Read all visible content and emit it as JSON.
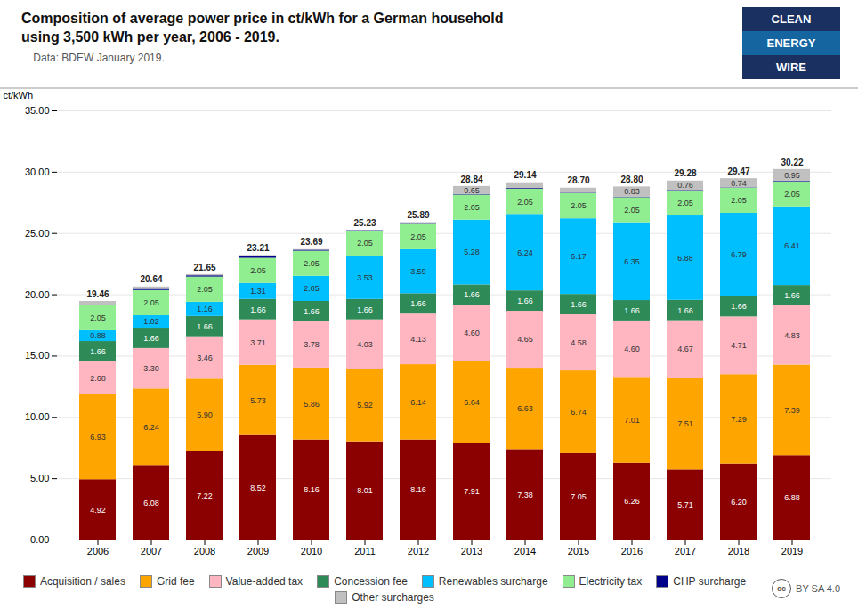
{
  "chart_data": {
    "type": "bar",
    "stacked": true,
    "title": "Composition of average power price in ct/kWh for a German household\nusing 3,500 kWh per year, 2006 - 2019.",
    "subtitle": "    Data: BDEW January 2019.",
    "categories": [
      2006,
      2007,
      2008,
      2009,
      2010,
      2011,
      2012,
      2013,
      2014,
      2015,
      2016,
      2017,
      2018,
      2019
    ],
    "series": [
      {
        "name": "Acquisition / sales",
        "color": "#8B0000",
        "values": [
          4.92,
          6.08,
          7.22,
          8.52,
          8.16,
          8.01,
          8.16,
          7.91,
          7.38,
          7.05,
          6.26,
          5.71,
          6.2,
          6.88
        ],
        "value_labels": [
          "4.92",
          "6.08",
          "7.22",
          "8.52",
          "8.16",
          "8.01",
          "8.16",
          "7.91",
          "7.38",
          "7.05",
          "6.26",
          "5.71",
          "6.20",
          "6.88"
        ]
      },
      {
        "name": "Grid fee",
        "color": "#FFA500",
        "values": [
          6.93,
          6.24,
          5.9,
          5.73,
          5.86,
          5.92,
          6.14,
          6.64,
          6.63,
          6.74,
          7.01,
          7.51,
          7.29,
          7.39
        ],
        "value_labels": [
          "6.93",
          "6.24",
          "5.90",
          "5.73",
          "5.86",
          "5.92",
          "6.14",
          "6.64",
          "6.63",
          "6.74",
          "7.01",
          "7.51",
          "7.29",
          "7.39"
        ]
      },
      {
        "name": "Value-added tax",
        "color": "#FFB6C1",
        "values": [
          2.68,
          3.3,
          3.46,
          3.71,
          3.78,
          4.03,
          4.13,
          4.6,
          4.65,
          4.58,
          4.6,
          4.67,
          4.71,
          4.83
        ],
        "value_labels": [
          "2.68",
          "3.30",
          "3.46",
          "3.71",
          "3.78",
          "4.03",
          "4.13",
          "4.60",
          "4.65",
          "4.58",
          "4.60",
          "4.67",
          "4.71",
          "4.83"
        ]
      },
      {
        "name": "Concession fee",
        "color": "#2E8B57",
        "values": [
          1.66,
          1.66,
          1.66,
          1.66,
          1.66,
          1.66,
          1.66,
          1.66,
          1.66,
          1.66,
          1.66,
          1.66,
          1.66,
          1.66
        ],
        "value_labels": [
          "1.66",
          "1.66",
          "1.66",
          "1.66",
          "1.66",
          "1.66",
          "1.66",
          "1.66",
          "1.66",
          "1.66",
          "1.66",
          "1.66",
          "1.66",
          "1.66"
        ]
      },
      {
        "name": "Renewables surcharge",
        "color": "#00BFFF",
        "values": [
          0.88,
          1.02,
          1.16,
          1.31,
          2.05,
          3.53,
          3.59,
          5.28,
          6.24,
          6.17,
          6.35,
          6.88,
          6.79,
          6.41
        ],
        "value_labels": [
          "0.88",
          "1.02",
          "1.16",
          "1.31",
          "2.05",
          "3.53",
          "3.59",
          "5.28",
          "6.24",
          "6.17",
          "6.35",
          "6.88",
          "6.79",
          "6.41"
        ]
      },
      {
        "name": "Electricity tax",
        "color": "#90EE90",
        "values": [
          2.05,
          2.05,
          2.05,
          2.05,
          2.05,
          2.05,
          2.05,
          2.05,
          2.05,
          2.05,
          2.05,
          2.05,
          2.05,
          2.05
        ],
        "value_labels": [
          "2.05",
          "2.05",
          "2.05",
          "2.05",
          "2.05",
          "2.05",
          "2.05",
          "2.05",
          "2.05",
          "2.05",
          "2.05",
          "2.05",
          "2.05",
          "2.05"
        ]
      },
      {
        "name": "CHP surcharge",
        "color": "#00008B",
        "values": [
          0.05,
          0.09,
          0.1,
          0.18,
          0.08,
          0.03,
          0.03,
          0.05,
          0.06,
          0.04,
          0.04,
          0.04,
          0.03,
          0.05
        ],
        "value_labels": [
          null,
          null,
          null,
          null,
          null,
          null,
          null,
          null,
          null,
          null,
          null,
          null,
          null,
          null
        ]
      },
      {
        "name": "Other surcharges",
        "color": "#C0C0C0",
        "values": [
          0.29,
          0.2,
          0.1,
          0.05,
          0.05,
          0.0,
          0.13,
          0.65,
          0.47,
          0.41,
          0.83,
          0.76,
          0.74,
          0.95
        ],
        "value_labels": [
          null,
          null,
          null,
          null,
          null,
          null,
          null,
          "0.65",
          null,
          null,
          "0.83",
          "0.76",
          "0.74",
          "0.95"
        ]
      }
    ],
    "totals": [
      19.46,
      20.64,
      21.65,
      23.21,
      23.69,
      25.23,
      25.89,
      28.84,
      29.14,
      28.7,
      28.8,
      29.28,
      29.47,
      30.22
    ],
    "total_labels": [
      "19.46",
      "20.64",
      "21.65",
      "23.21",
      "23.69",
      "25.23",
      "25.89",
      "28.84",
      "29.14",
      "28.70",
      "28.80",
      "29.28",
      "29.47",
      "30.22"
    ],
    "data_labels": true,
    "ylabel": "ct/kWh",
    "ylim": [
      0,
      35
    ],
    "yticks": [
      {
        "value": 0,
        "label": "0.00"
      },
      {
        "value": 5,
        "label": "5.00"
      },
      {
        "value": 10,
        "label": "10.00"
      },
      {
        "value": 15,
        "label": "15.00"
      },
      {
        "value": 20,
        "label": "20.00"
      },
      {
        "value": 25,
        "label": "25.00"
      },
      {
        "value": 30,
        "label": "30.00"
      },
      {
        "value": 35,
        "label": "35.00"
      }
    ],
    "grid": true,
    "legend": "bottom",
    "annotations": [
      {
        "text": "CLEAN",
        "color": "#1a3060"
      },
      {
        "text": "ENERGY",
        "color": "#1565a0"
      },
      {
        "text": "WIRE",
        "color": "#1a3060"
      },
      {
        "text": "cc"
      },
      {
        "text": "BY SA 4.0"
      }
    ]
  }
}
